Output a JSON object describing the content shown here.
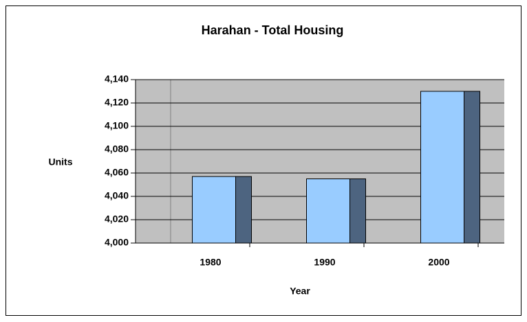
{
  "chart_data": {
    "type": "bar",
    "title": "Harahan - Total Housing",
    "x_label": "Year",
    "y_label": "Units",
    "categories": [
      "1980",
      "1990",
      "2000"
    ],
    "values": [
      4057,
      4055,
      4130
    ],
    "color": "#99ccff",
    "side_color": "#4d6480",
    "plot_background": "#c0c0c0",
    "ylim": [
      4000,
      4140
    ],
    "yticks": [
      {
        "value": 4000,
        "label": "4,000"
      },
      {
        "value": 4020,
        "label": "4,020"
      },
      {
        "value": 4040,
        "label": "4,040"
      },
      {
        "value": 4060,
        "label": "4,060"
      },
      {
        "value": 4080,
        "label": "4,080"
      },
      {
        "value": 4100,
        "label": "4,100"
      },
      {
        "value": 4120,
        "label": "4,120"
      },
      {
        "value": 4140,
        "label": "4,140"
      }
    ],
    "grid": true
  }
}
